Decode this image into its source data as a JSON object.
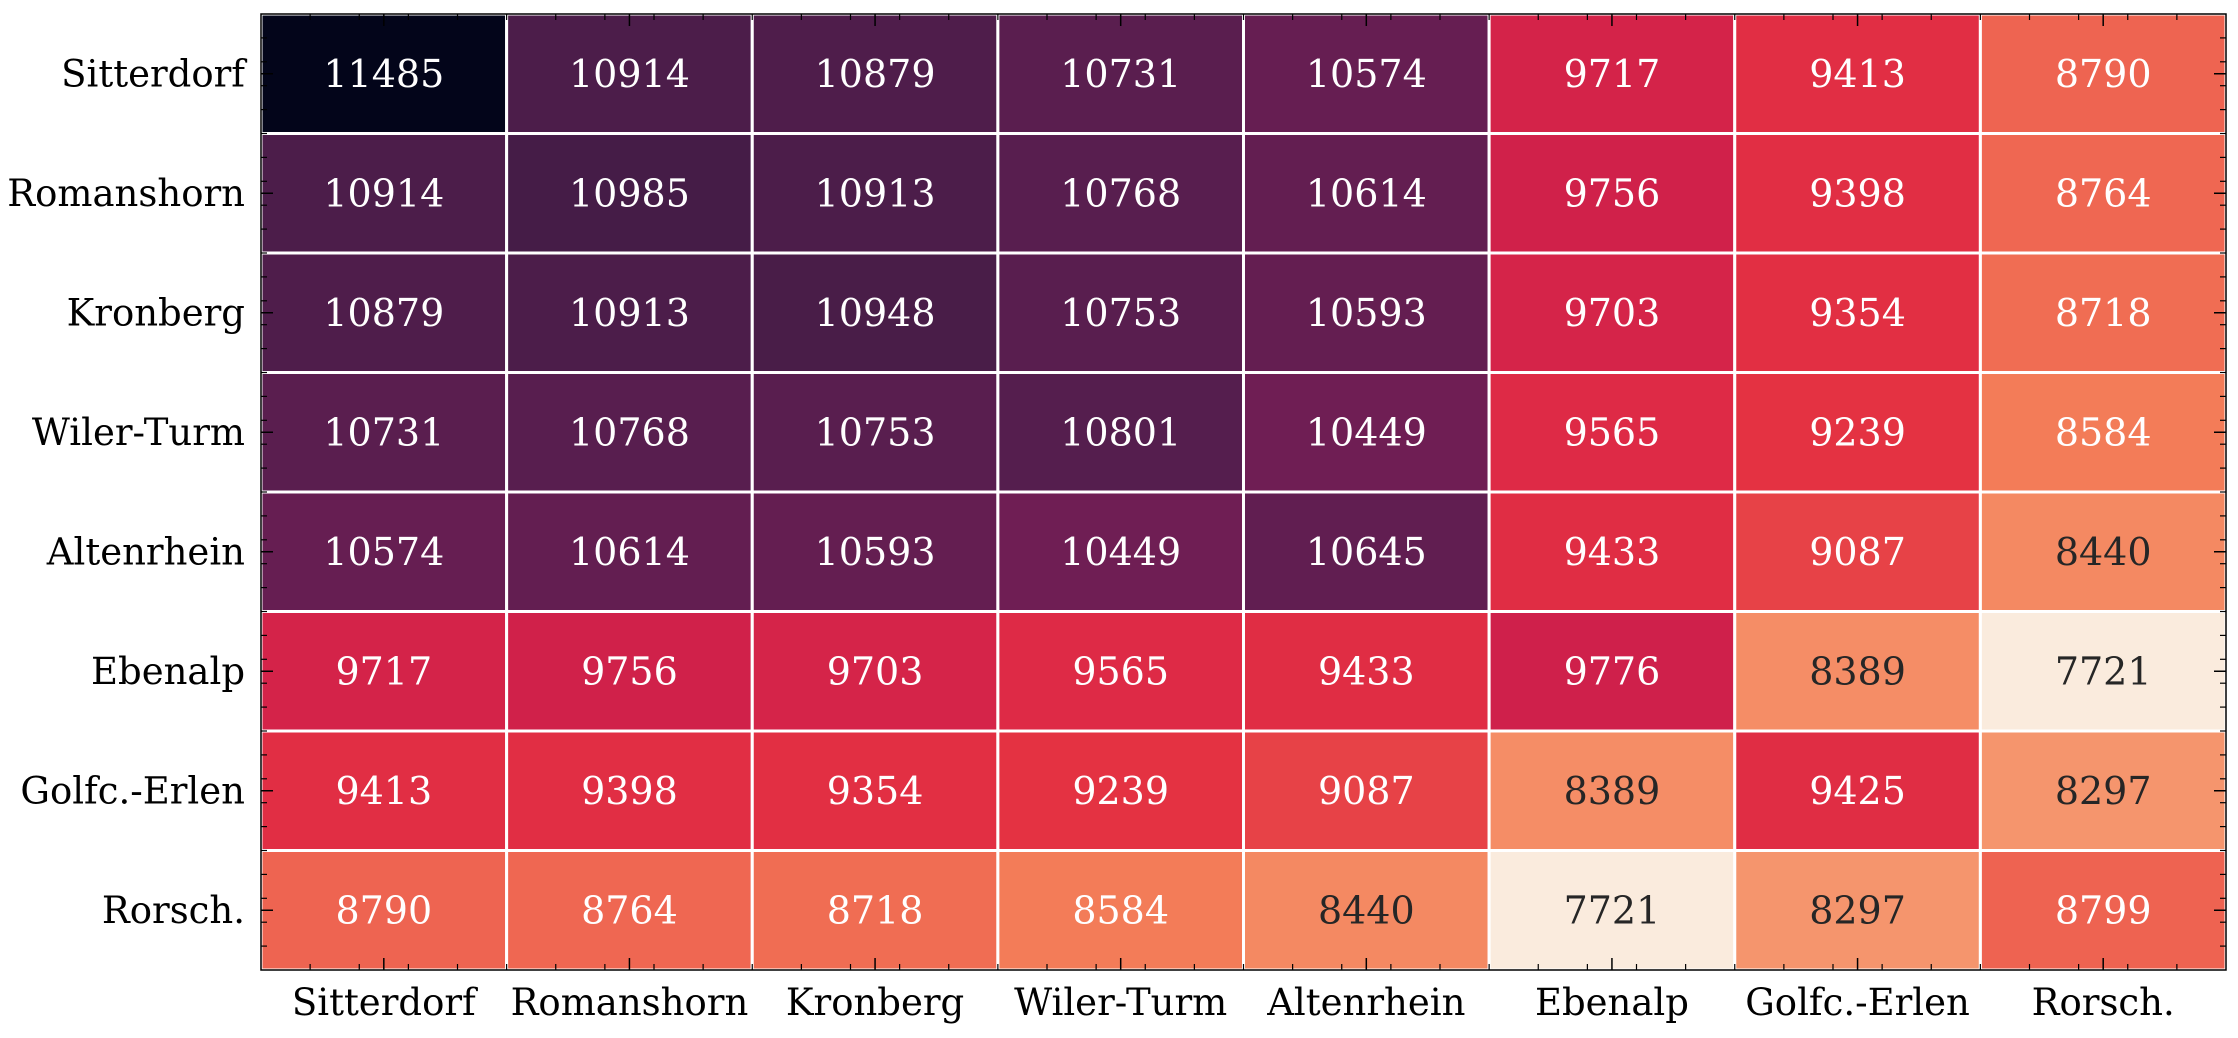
{
  "chart_data": {
    "type": "heatmap",
    "title": "",
    "xlabel": "",
    "ylabel": "",
    "colormap": "rocket",
    "annotated": true,
    "x_labels": [
      "Sitterdorf",
      "Romanshorn",
      "Kronberg",
      "Wiler-Turm",
      "Altenrhein",
      "Ebenalp",
      "Golfc.-Erlen",
      "Rorsch."
    ],
    "y_labels": [
      "Sitterdorf",
      "Romanshorn",
      "Kronberg",
      "Wiler-Turm",
      "Altenrhein",
      "Ebenalp",
      "Golfc.-Erlen",
      "Rorsch."
    ],
    "values": [
      [
        11485,
        10914,
        10879,
        10731,
        10574,
        9717,
        9413,
        8790
      ],
      [
        10914,
        10985,
        10913,
        10768,
        10614,
        9756,
        9398,
        8764
      ],
      [
        10879,
        10913,
        10948,
        10753,
        10593,
        9703,
        9354,
        8718
      ],
      [
        10731,
        10768,
        10753,
        10801,
        10449,
        9565,
        9239,
        8584
      ],
      [
        10574,
        10614,
        10593,
        10449,
        10645,
        9433,
        9087,
        8440
      ],
      [
        9717,
        9756,
        9703,
        9565,
        9433,
        9776,
        8389,
        7721
      ],
      [
        9413,
        9398,
        9354,
        9239,
        9087,
        8389,
        9425,
        8297
      ],
      [
        8790,
        8764,
        8718,
        8584,
        8440,
        7721,
        8297,
        8799
      ]
    ],
    "grid": false,
    "cell_border_color": "#ffffff",
    "colorbar": false
  }
}
